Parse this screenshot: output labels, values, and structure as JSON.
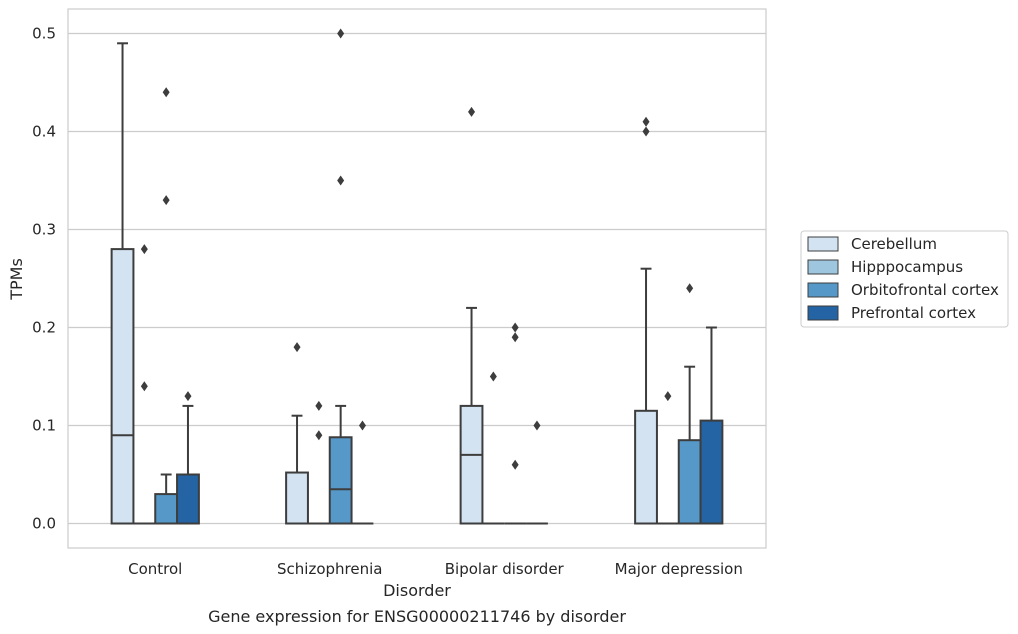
{
  "caption": "Gene expression for ENSG00000211746 by disorder",
  "chart_data": {
    "type": "box",
    "title": "",
    "xlabel": "Disorder",
    "ylabel": "TPMs",
    "ylim": [
      -0.025,
      0.525
    ],
    "yticks": [
      "0.0",
      "0.1",
      "0.2",
      "0.3",
      "0.4",
      "0.5"
    ],
    "grid": true,
    "legend_position": "right",
    "categories": [
      "Control",
      "Schizophrenia",
      "Bipolar disorder",
      "Major depression"
    ],
    "series": [
      {
        "name": "Cerebellum",
        "color": "#d3e3f2",
        "boxes": [
          {
            "q1": 0.0,
            "median": 0.09,
            "q3": 0.28,
            "whisker_low": 0.0,
            "whisker_high": 0.49,
            "outliers": []
          },
          {
            "q1": 0.0,
            "median": 0.0,
            "q3": 0.052,
            "whisker_low": 0.0,
            "whisker_high": 0.11,
            "outliers": [
              0.18
            ]
          },
          {
            "q1": 0.0,
            "median": 0.07,
            "q3": 0.12,
            "whisker_low": 0.0,
            "whisker_high": 0.22,
            "outliers": [
              0.42
            ]
          },
          {
            "q1": 0.0,
            "median": 0.0,
            "q3": 0.115,
            "whisker_low": 0.0,
            "whisker_high": 0.26,
            "outliers": [
              0.4,
              0.41
            ]
          }
        ]
      },
      {
        "name": "Hipppocampus",
        "color": "#9ec6df",
        "boxes": [
          {
            "q1": 0.0,
            "median": 0.0,
            "q3": 0.0,
            "whisker_low": 0.0,
            "whisker_high": 0.0,
            "outliers": [
              0.14,
              0.28
            ]
          },
          {
            "q1": 0.0,
            "median": 0.0,
            "q3": 0.0,
            "whisker_low": 0.0,
            "whisker_high": 0.0,
            "outliers": [
              0.09,
              0.12
            ]
          },
          {
            "q1": 0.0,
            "median": 0.0,
            "q3": 0.0,
            "whisker_low": 0.0,
            "whisker_high": 0.0,
            "outliers": [
              0.15
            ]
          },
          {
            "q1": 0.0,
            "median": 0.0,
            "q3": 0.0,
            "whisker_low": 0.0,
            "whisker_high": 0.0,
            "outliers": [
              0.13
            ]
          }
        ]
      },
      {
        "name": "Orbitofrontal cortex",
        "color": "#5699c8",
        "boxes": [
          {
            "q1": 0.0,
            "median": 0.0,
            "q3": 0.03,
            "whisker_low": 0.0,
            "whisker_high": 0.05,
            "outliers": [
              0.33,
              0.44
            ]
          },
          {
            "q1": 0.0,
            "median": 0.035,
            "q3": 0.088,
            "whisker_low": 0.0,
            "whisker_high": 0.12,
            "outliers": [
              0.35,
              0.5
            ]
          },
          {
            "q1": 0.0,
            "median": 0.0,
            "q3": 0.0,
            "whisker_low": 0.0,
            "whisker_high": 0.0,
            "outliers": [
              0.06,
              0.19,
              0.2
            ]
          },
          {
            "q1": 0.0,
            "median": 0.0,
            "q3": 0.085,
            "whisker_low": 0.0,
            "whisker_high": 0.16,
            "outliers": [
              0.24
            ]
          }
        ]
      },
      {
        "name": "Prefrontal cortex",
        "color": "#2464a4",
        "boxes": [
          {
            "q1": 0.0,
            "median": 0.0,
            "q3": 0.05,
            "whisker_low": 0.0,
            "whisker_high": 0.12,
            "outliers": [
              0.13
            ]
          },
          {
            "q1": 0.0,
            "median": 0.0,
            "q3": 0.0,
            "whisker_low": 0.0,
            "whisker_high": 0.0,
            "outliers": [
              0.1
            ]
          },
          {
            "q1": 0.0,
            "median": 0.0,
            "q3": 0.0,
            "whisker_low": 0.0,
            "whisker_high": 0.0,
            "outliers": [
              0.1
            ]
          },
          {
            "q1": 0.0,
            "median": 0.0,
            "q3": 0.105,
            "whisker_low": 0.0,
            "whisker_high": 0.2,
            "outliers": []
          }
        ]
      }
    ]
  }
}
